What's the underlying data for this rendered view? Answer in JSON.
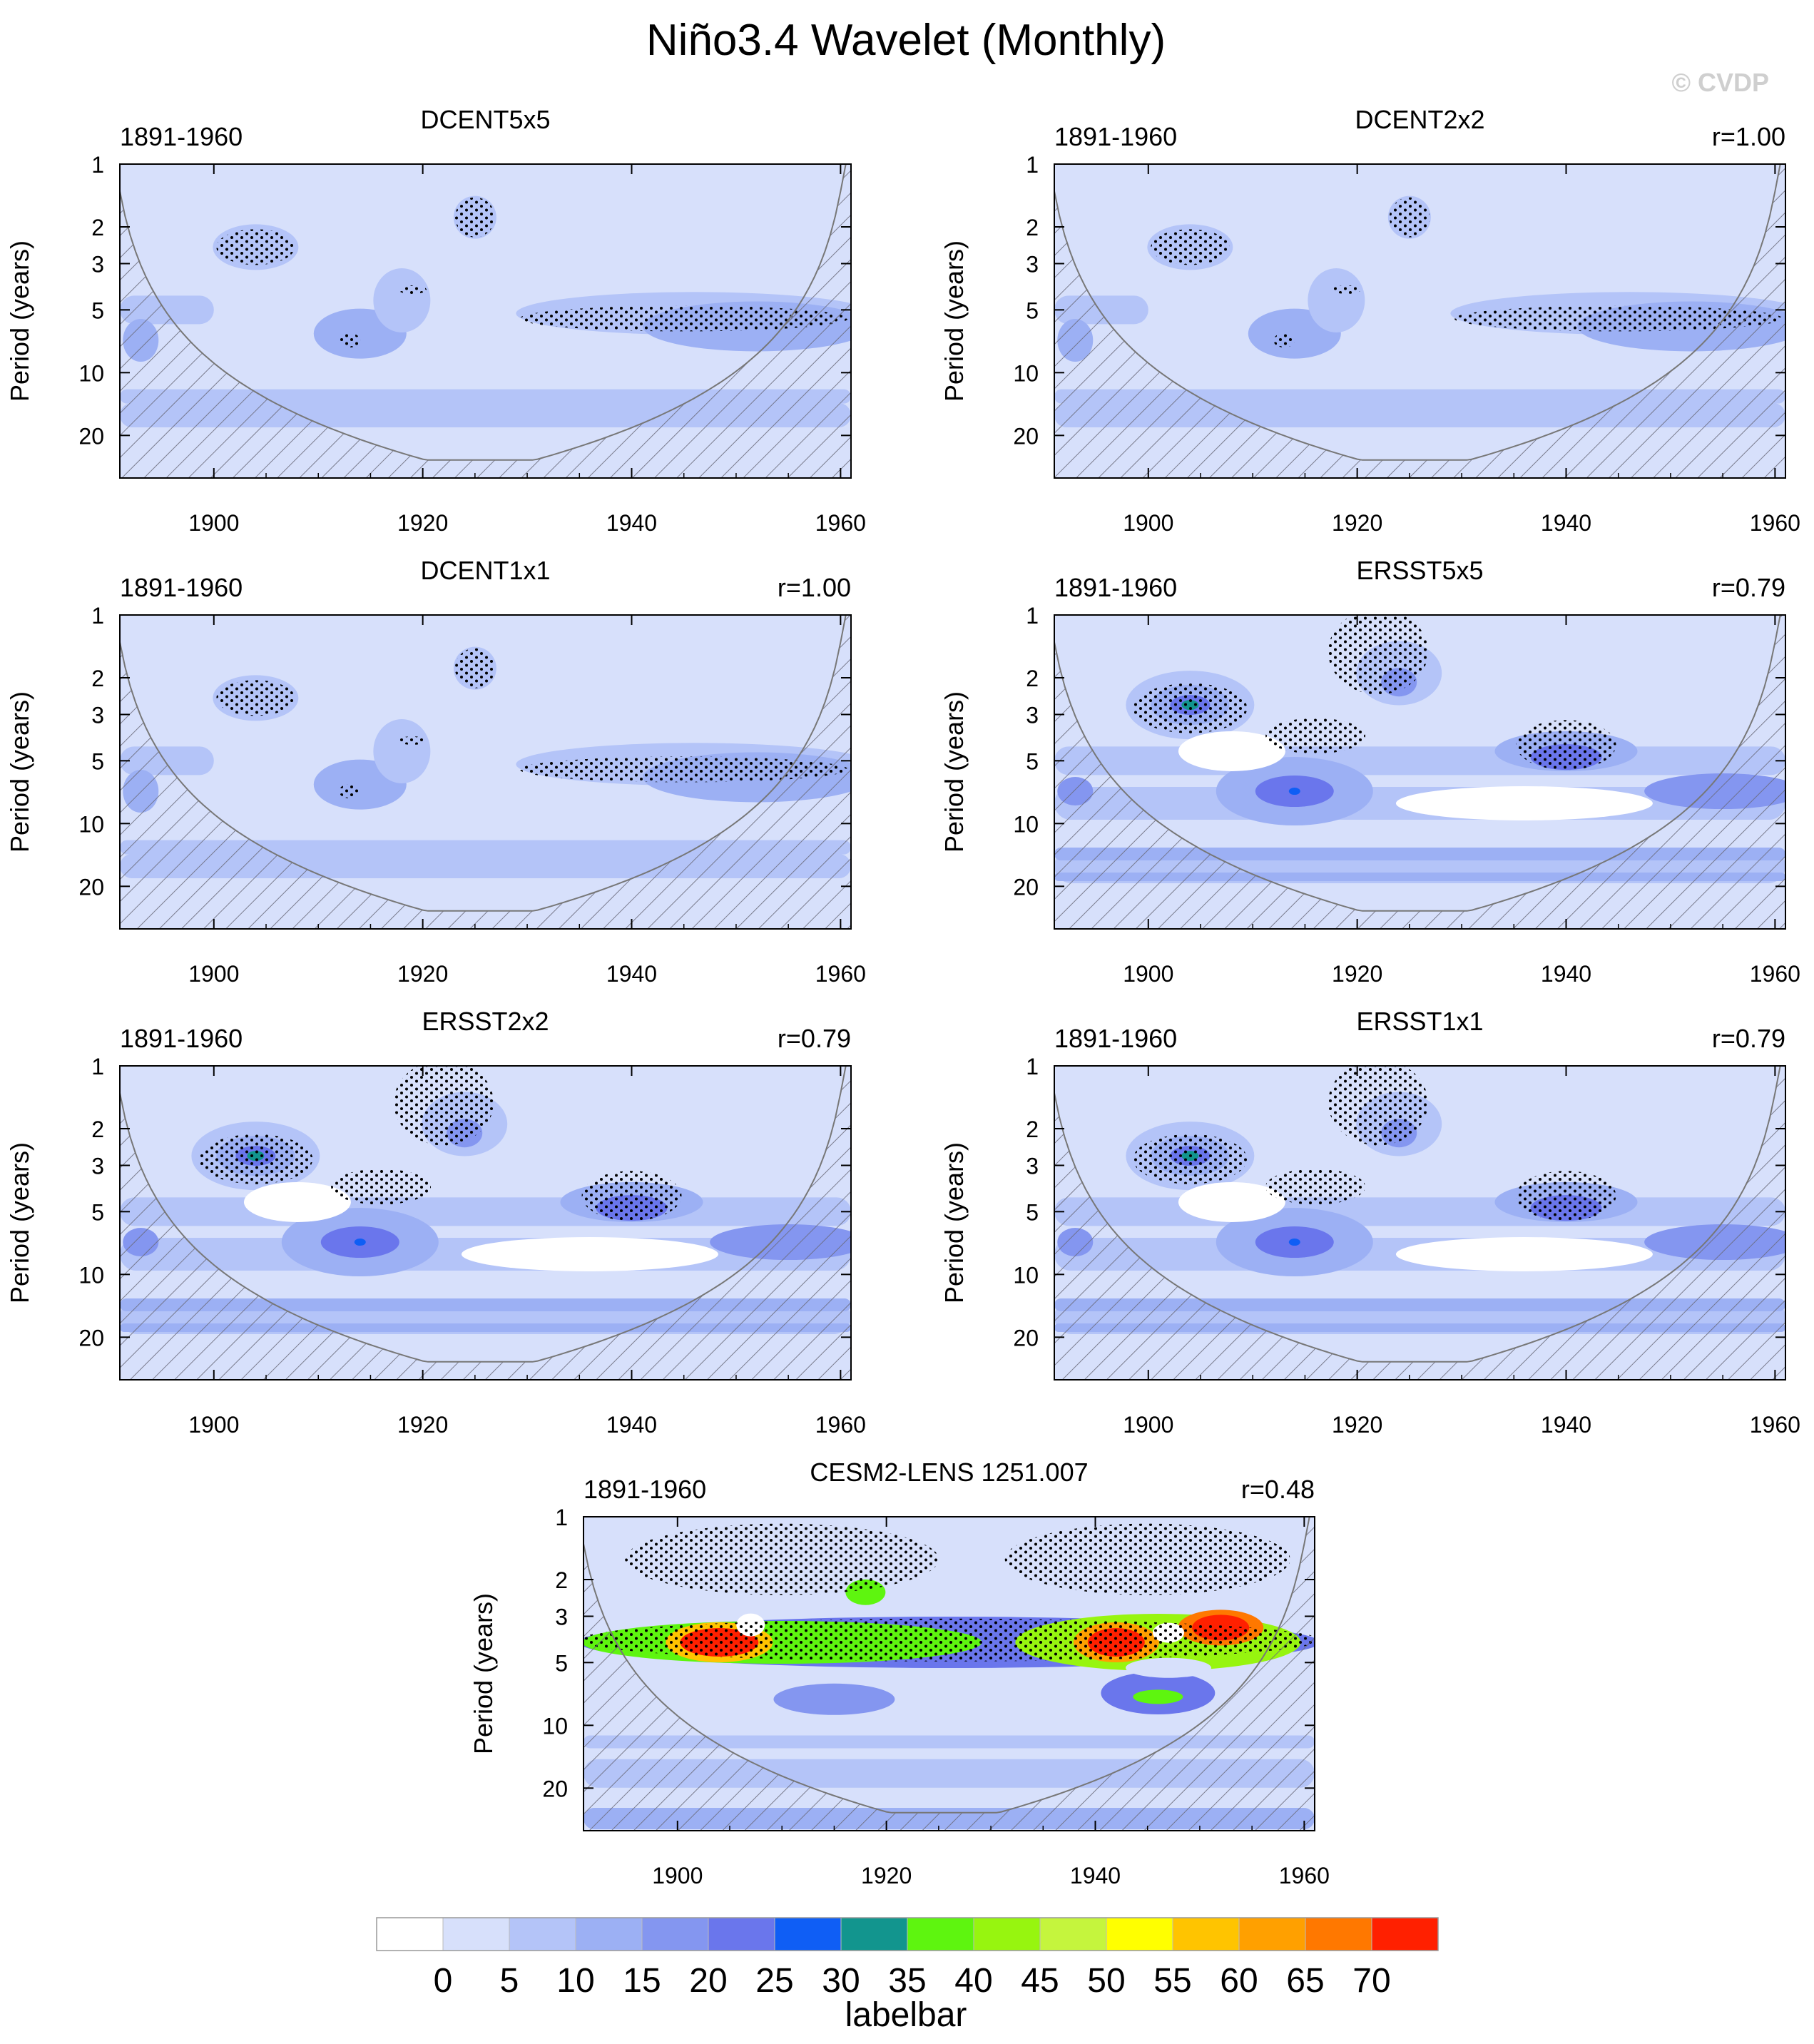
{
  "figure": {
    "title": "Niño3.4 Wavelet (Monthly)",
    "watermark": "© CVDP"
  },
  "chart_data": [
    {
      "type": "heatmap",
      "title": "DCENT5x5",
      "period": "1891-1960",
      "r_label": "",
      "ylabel": "Period (years)",
      "yticks": [
        "1",
        "2",
        "3",
        "5",
        "10",
        "20"
      ],
      "xticks": [
        "1900",
        "1920",
        "1940",
        "1960"
      ],
      "xlim": [
        1891,
        1961
      ],
      "yscale": "log",
      "ylim": [
        1,
        32
      ],
      "hatched_cone": true
    },
    {
      "type": "heatmap",
      "title": "DCENT2x2",
      "period": "1891-1960",
      "r_label": "r=1.00",
      "ylabel": "Period (years)",
      "yticks": [
        "1",
        "2",
        "3",
        "5",
        "10",
        "20"
      ],
      "xticks": [
        "1900",
        "1920",
        "1940",
        "1960"
      ],
      "xlim": [
        1891,
        1961
      ],
      "yscale": "log",
      "ylim": [
        1,
        32
      ],
      "hatched_cone": true
    },
    {
      "type": "heatmap",
      "title": "DCENT1x1",
      "period": "1891-1960",
      "r_label": "r=1.00",
      "ylabel": "Period (years)",
      "yticks": [
        "1",
        "2",
        "3",
        "5",
        "10",
        "20"
      ],
      "xticks": [
        "1900",
        "1920",
        "1940",
        "1960"
      ],
      "xlim": [
        1891,
        1961
      ],
      "yscale": "log",
      "ylim": [
        1,
        32
      ],
      "hatched_cone": true
    },
    {
      "type": "heatmap",
      "title": "ERSST5x5",
      "period": "1891-1960",
      "r_label": "r=0.79",
      "ylabel": "Period (years)",
      "yticks": [
        "1",
        "2",
        "3",
        "5",
        "10",
        "20"
      ],
      "xticks": [
        "1900",
        "1920",
        "1940",
        "1960"
      ],
      "xlim": [
        1891,
        1961
      ],
      "yscale": "log",
      "ylim": [
        1,
        32
      ],
      "hatched_cone": true
    },
    {
      "type": "heatmap",
      "title": "ERSST2x2",
      "period": "1891-1960",
      "r_label": "r=0.79",
      "ylabel": "Period (years)",
      "yticks": [
        "1",
        "2",
        "3",
        "5",
        "10",
        "20"
      ],
      "xticks": [
        "1900",
        "1920",
        "1940",
        "1960"
      ],
      "xlim": [
        1891,
        1961
      ],
      "yscale": "log",
      "ylim": [
        1,
        32
      ],
      "hatched_cone": true
    },
    {
      "type": "heatmap",
      "title": "ERSST1x1",
      "period": "1891-1960",
      "r_label": "r=0.79",
      "ylabel": "Period (years)",
      "yticks": [
        "1",
        "2",
        "3",
        "5",
        "10",
        "20"
      ],
      "xticks": [
        "1900",
        "1920",
        "1940",
        "1960"
      ],
      "xlim": [
        1891,
        1961
      ],
      "yscale": "log",
      "ylim": [
        1,
        32
      ],
      "hatched_cone": true
    },
    {
      "type": "heatmap",
      "title": "CESM2-LENS 1251.007",
      "period": "1891-1960",
      "r_label": "r=0.48",
      "ylabel": "Period (years)",
      "yticks": [
        "1",
        "2",
        "3",
        "5",
        "10",
        "20"
      ],
      "xticks": [
        "1900",
        "1920",
        "1940",
        "1960"
      ],
      "xlim": [
        1891,
        1961
      ],
      "yscale": "log",
      "ylim": [
        1,
        32
      ],
      "hatched_cone": true
    }
  ],
  "labelbar": {
    "title": "labelbar",
    "labels": [
      "0",
      "5",
      "10",
      "15",
      "20",
      "25",
      "30",
      "35",
      "40",
      "45",
      "50",
      "55",
      "60",
      "65",
      "70"
    ],
    "colors": [
      "#ffffff",
      "#d7e0fb",
      "#b4c4f8",
      "#9cb0f4",
      "#8496f0",
      "#6a76ec",
      "#0f5ef5",
      "#12958e",
      "#5ef50f",
      "#97f50f",
      "#c5f53d",
      "#ffff00",
      "#ffc400",
      "#ffa000",
      "#ff7800",
      "#ff2000"
    ]
  }
}
